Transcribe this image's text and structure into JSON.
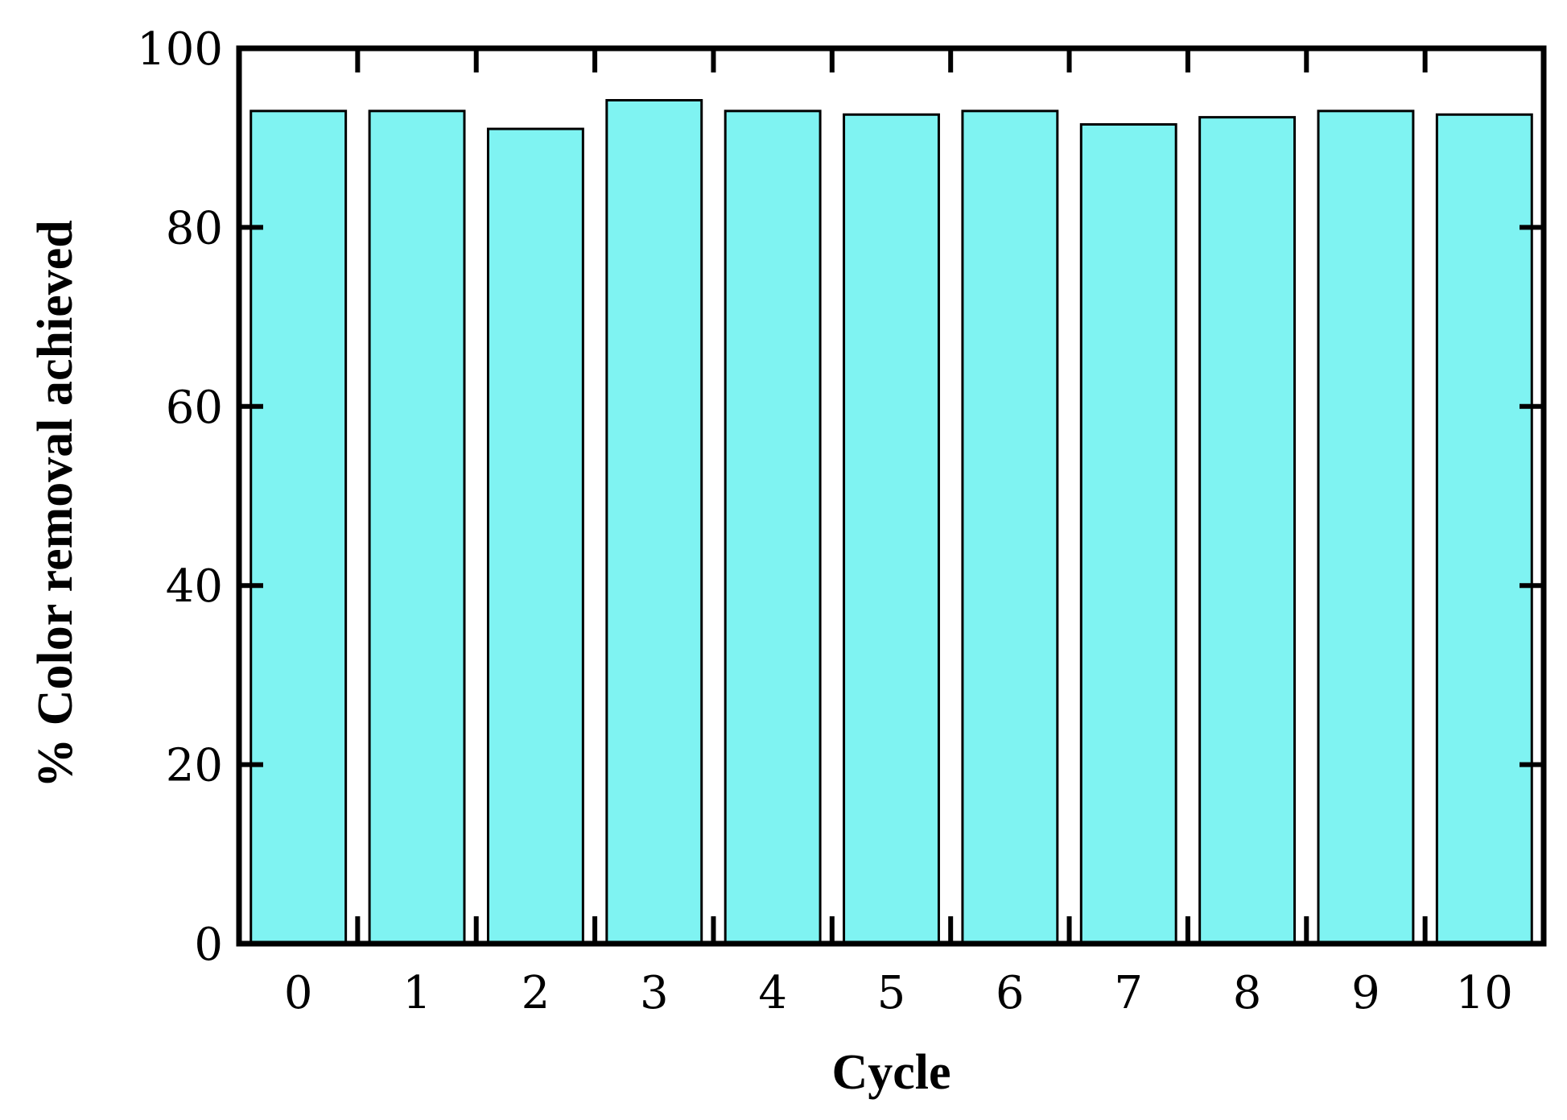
{
  "chart_data": {
    "type": "bar",
    "categories": [
      "0",
      "1",
      "2",
      "3",
      "4",
      "5",
      "6",
      "7",
      "8",
      "9",
      "10"
    ],
    "values": [
      93,
      93,
      91,
      94.2,
      93,
      92.6,
      93,
      91.5,
      92.3,
      93,
      92.6
    ],
    "title": "",
    "xlabel": "Cycle",
    "ylabel": "% Color removal achieved",
    "ylim": [
      0,
      100
    ],
    "yticks": [
      0,
      20,
      40,
      60,
      80,
      100
    ],
    "grid": false,
    "legend": "none",
    "bar_color": "#7ff3f2",
    "edge_color": "#000000"
  }
}
